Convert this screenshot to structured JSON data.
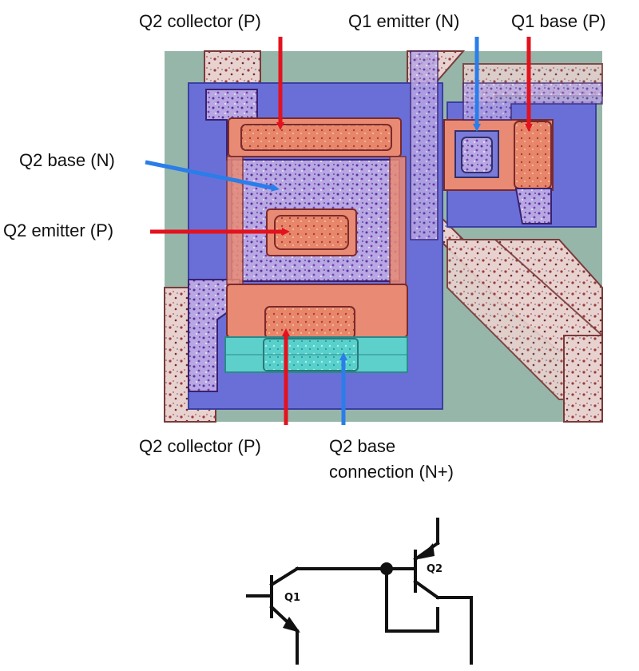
{
  "labels": {
    "q2_collector_top": "Q2 collector (P)",
    "q1_emitter": "Q1 emitter (N)",
    "q1_base": "Q1 base (P)",
    "q2_base": "Q2 base (N)",
    "q2_emitter": "Q2 emitter (P)",
    "q2_collector_bottom": "Q2 collector (P)",
    "q2_base_conn_line1": "Q2 base",
    "q2_base_conn_line2": "connection (N+)"
  },
  "schematic": {
    "q1_label": "Q1",
    "q2_label": "Q2"
  },
  "colors": {
    "p_region_arrow": "#e3121e",
    "n_region_arrow": "#2b7de9",
    "p_region_fill": "#e8796a",
    "n_region_fill": "#6a5fd0",
    "n_plus_fill": "#33c4c8",
    "substrate": "#8fb0a4",
    "metal": "#c9a9b0"
  }
}
